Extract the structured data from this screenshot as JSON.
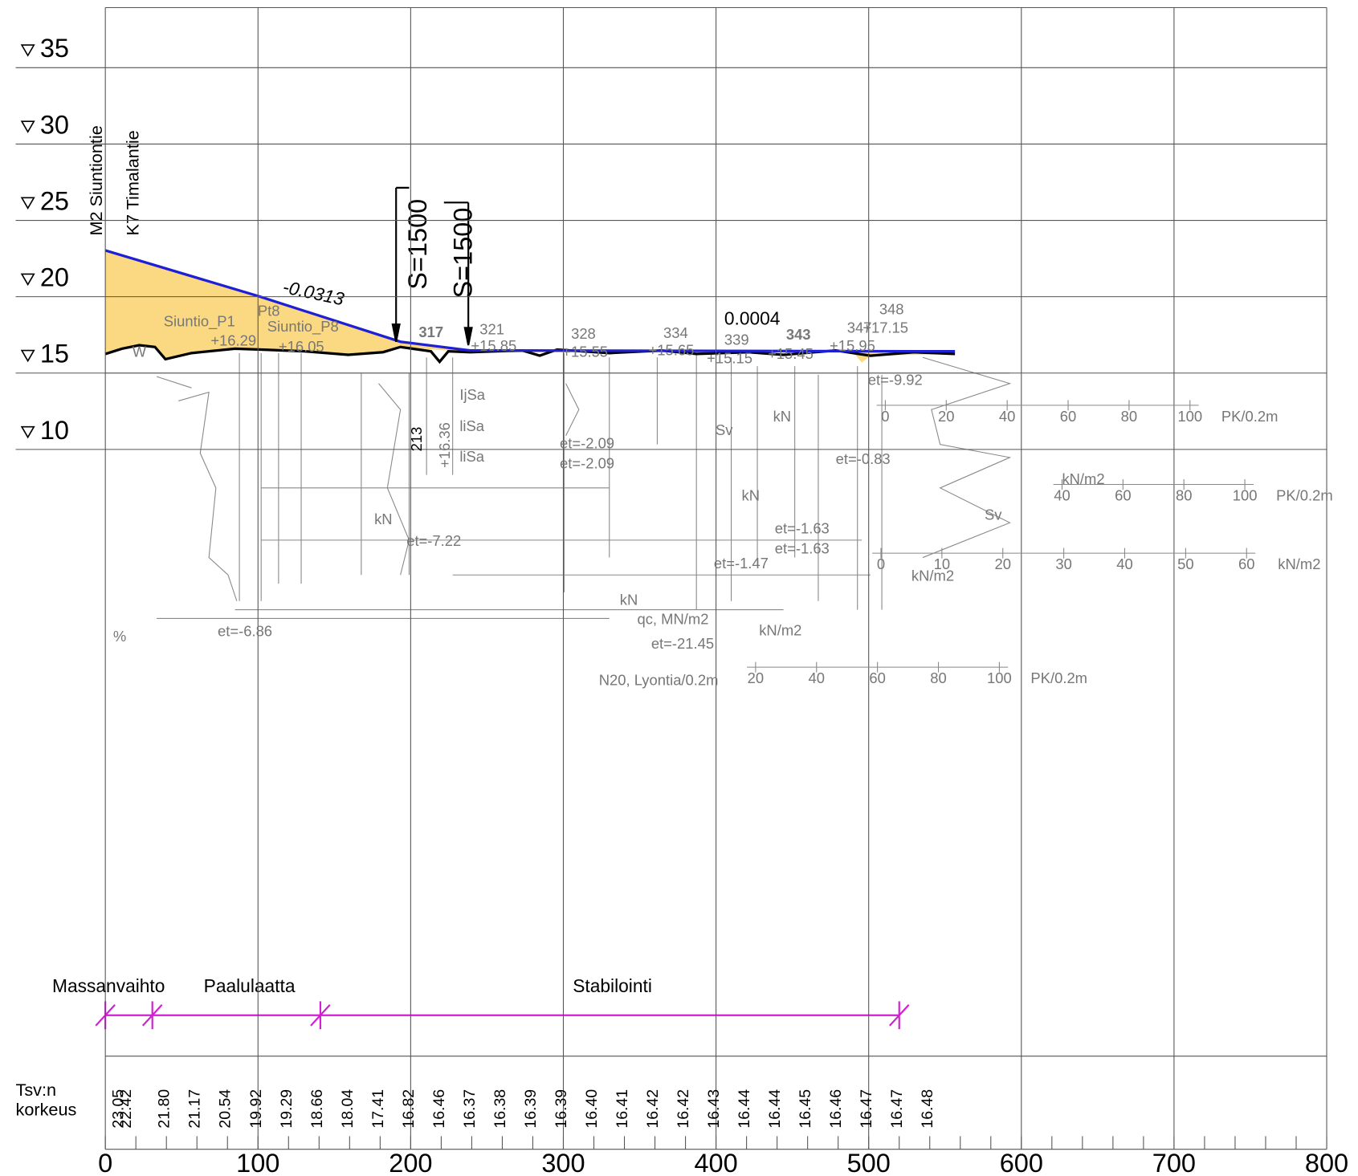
{
  "elevation_ticks": [
    35,
    30,
    25,
    20,
    15,
    10
  ],
  "station_ticks": [
    0,
    100,
    200,
    300,
    400,
    500,
    600,
    700,
    800
  ],
  "roads": [
    "M2 Siuntiontie",
    "K7 Timalantie"
  ],
  "grades": [
    "-0.0313",
    "0.0004"
  ],
  "curves": [
    "S=1500",
    "S=1500"
  ],
  "sections": [
    "Massanvaihto",
    "Paalulaatta",
    "Stabilointi"
  ],
  "grade_heights": {
    "label": [
      "Tsv:n",
      "korkeus"
    ],
    "values": [
      "23.05",
      "22.42",
      "21.80",
      "21.17",
      "20.54",
      "19.92",
      "19.29",
      "18.66",
      "18.04",
      "17.41",
      "16.82",
      "16.46",
      "16.37",
      "16.38",
      "16.39",
      "16.39",
      "16.40",
      "16.41",
      "16.42",
      "16.42",
      "16.43",
      "16.44",
      "16.44",
      "16.45",
      "16.46",
      "16.47",
      "16.47",
      "16.48"
    ]
  },
  "annotations": [
    "Siuntio_P1",
    "+16.29",
    "Pt8",
    "Siuntio_P8",
    "+16.05",
    "W",
    "317",
    "321",
    "+15.85",
    "328",
    "+15.55",
    "334",
    "+15.65",
    "339",
    "+15.15",
    "343",
    "+15.45",
    "347",
    "348",
    "+17.15",
    "+15.95",
    "213",
    "+16.36",
    "IjSa",
    "liSa",
    "liSa",
    "Sv",
    "Sv",
    "et=-9.92",
    "et=-2.09",
    "et=-2.09",
    "et=-0.83",
    "et=-1.63",
    "et=-1.63",
    "et=-1.47",
    "et=-7.22",
    "et=-6.86",
    "et=-21.45",
    "kN/m2",
    "kN/m2",
    "kN/m2",
    "qc, MN/m2",
    "N20, Lyontia/0.2m",
    "%",
    "kN",
    "kN",
    "kN",
    "kN"
  ],
  "scales": [
    {
      "labels": [
        0,
        20,
        40,
        60,
        80,
        100
      ],
      "unit": "PK/0.2m"
    },
    {
      "labels": [
        40,
        60,
        80,
        100
      ],
      "unit": "PK/0.2m"
    },
    {
      "labels": [
        0,
        10,
        20,
        30,
        40,
        50,
        60
      ],
      "unit": "kN/m2"
    },
    {
      "labels": [
        20,
        40,
        60,
        80,
        100
      ],
      "unit": "PK/0.2m"
    }
  ]
}
